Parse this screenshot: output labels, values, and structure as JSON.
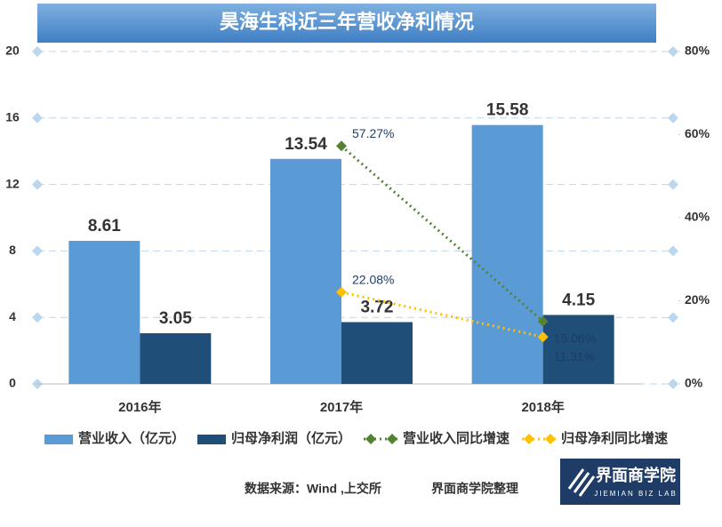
{
  "chart_data": {
    "type": "bar",
    "title": "昊海生科近三年营收净利情况",
    "categories": [
      "2016年",
      "2017年",
      "2018年"
    ],
    "series": [
      {
        "name": "营业收入（亿元）",
        "color": "#5b9bd5",
        "values": [
          8.61,
          13.54,
          15.58
        ]
      },
      {
        "name": "归母净利润（亿元）",
        "color": "#1f4e79",
        "values": [
          3.05,
          3.72,
          4.15
        ]
      },
      {
        "name": "营业收入同比增速",
        "color": "#548235",
        "type": "line",
        "axis": "y2",
        "values": [
          null,
          57.27,
          15.06
        ],
        "value_labels": [
          null,
          "57.27%",
          "15.06%"
        ]
      },
      {
        "name": "归母净利同比增速",
        "color": "#ffc000",
        "type": "line",
        "axis": "y2",
        "values": [
          null,
          22.08,
          11.31
        ],
        "value_labels": [
          null,
          "22.08%",
          "11.31%"
        ]
      }
    ],
    "ylim": [
      0,
      20
    ],
    "yticks": [
      0,
      4,
      8,
      12,
      16,
      20
    ],
    "y2lim": [
      0,
      80
    ],
    "y2ticks": [
      {
        "value": 0,
        "label": "0%"
      },
      {
        "value": 20,
        "label": "20%"
      },
      {
        "value": 40,
        "label": "40%"
      },
      {
        "value": 60,
        "label": "60%"
      },
      {
        "value": 80,
        "label": "80%"
      }
    ],
    "grid": true,
    "legend": "bottom",
    "source": "数据来源：Wind ,上交所",
    "credit": "界面商学院整理",
    "logo": {
      "name": "界面商学院",
      "subtitle": "JIEMIAN BIZ LAB"
    }
  }
}
